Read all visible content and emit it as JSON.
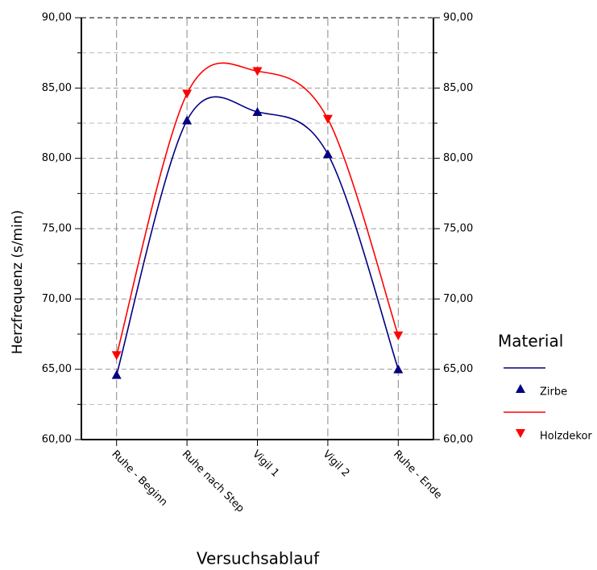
{
  "chart_data": {
    "type": "line",
    "categories": [
      "Ruhe - Beginn",
      "Ruhe nach Step",
      "Vigil 1",
      "Vigil 2",
      "Ruhe - Ende"
    ],
    "series": [
      {
        "name": "Zirbe",
        "color": "#000080",
        "marker": "triangle-up",
        "values": [
          64.6,
          82.7,
          83.3,
          80.3,
          65.0
        ]
      },
      {
        "name": "Holzdekor",
        "color": "#ff0000",
        "marker": "triangle-down",
        "values": [
          66.0,
          84.6,
          86.2,
          82.8,
          67.4
        ]
      }
    ],
    "ylim": [
      60,
      90
    ],
    "yticks": [
      {
        "value": 60,
        "label": "60,00"
      },
      {
        "value": 65,
        "label": "65,00"
      },
      {
        "value": 70,
        "label": "70,00"
      },
      {
        "value": 75,
        "label": "75,00"
      },
      {
        "value": 80,
        "label": "80,00"
      },
      {
        "value": 85,
        "label": "85,00"
      },
      {
        "value": 90,
        "label": "90,00"
      }
    ],
    "minor_yticks": [
      62.5,
      67.5,
      72.5,
      77.5,
      82.5,
      87.5
    ],
    "ylabel": "Herzfrequenz (s/min)",
    "xlabel": "Versuchsablauf",
    "legend_title": "Material",
    "legend": "right",
    "grid": true,
    "smooth": true
  }
}
